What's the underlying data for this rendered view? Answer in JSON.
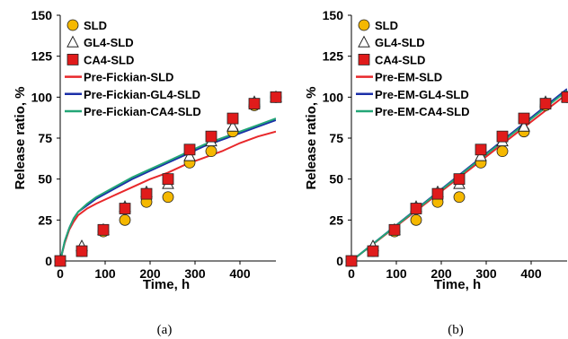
{
  "chart_data": [
    {
      "type": "scatter",
      "caption": "(a)",
      "xlabel": "Time, h",
      "ylabel": "Release ratio, %",
      "xlim": [
        0,
        480
      ],
      "ylim": [
        0,
        150
      ],
      "xticks": [
        "0",
        "100",
        "200",
        "300",
        "400"
      ],
      "yticks": [
        "0",
        "25",
        "50",
        "75",
        "100",
        "125",
        "150"
      ],
      "grid": false,
      "legend_position": "top-left",
      "series": [
        {
          "name": "SLD",
          "kind": "marker",
          "marker": "circle",
          "color": "#f5b800",
          "x": [
            0,
            48,
            96,
            144,
            192,
            240,
            288,
            336,
            384,
            432,
            480
          ],
          "y": [
            0,
            6,
            18,
            25,
            36,
            39,
            60,
            67,
            79,
            95,
            100
          ]
        },
        {
          "name": "GL4-SLD",
          "kind": "marker",
          "marker": "triangle",
          "color": "#ffffff",
          "x": [
            0,
            48,
            96,
            144,
            192,
            240,
            288,
            336,
            384,
            432,
            480
          ],
          "y": [
            0,
            9,
            19,
            33,
            42,
            47,
            64,
            73,
            82,
            97,
            100
          ]
        },
        {
          "name": "CA4-SLD",
          "kind": "marker",
          "marker": "square",
          "color": "#e01b1b",
          "x": [
            0,
            48,
            96,
            144,
            192,
            240,
            288,
            336,
            384,
            432,
            480
          ],
          "y": [
            0,
            6,
            19,
            32,
            41,
            50,
            68,
            76,
            87,
            96,
            100
          ]
        },
        {
          "name": "Pre-Fickian-SLD",
          "kind": "line",
          "color": "#e8282b",
          "x": [
            0,
            10,
            20,
            30,
            40,
            60,
            80,
            120,
            160,
            200,
            240,
            280,
            320,
            360,
            400,
            440,
            480
          ],
          "y": [
            0,
            11,
            19,
            24,
            28,
            32,
            35,
            40,
            45,
            50,
            54,
            59,
            63,
            67,
            72,
            76,
            79
          ]
        },
        {
          "name": "Pre-Fickian-GL4-SLD",
          "kind": "line",
          "color": "#1b2fa8",
          "x": [
            0,
            10,
            20,
            30,
            40,
            60,
            80,
            120,
            160,
            200,
            240,
            280,
            320,
            360,
            400,
            440,
            480
          ],
          "y": [
            0,
            12,
            20,
            26,
            30,
            34,
            38,
            44,
            50,
            55,
            60,
            65,
            70,
            74,
            78,
            82,
            86
          ]
        },
        {
          "name": "Pre-Fickian-CA4-SLD",
          "kind": "line",
          "color": "#23a677",
          "x": [
            0,
            10,
            20,
            30,
            40,
            60,
            80,
            120,
            160,
            200,
            240,
            280,
            320,
            360,
            400,
            440,
            480
          ],
          "y": [
            0,
            12,
            20,
            26,
            30,
            35,
            39,
            45,
            51,
            56,
            61,
            66,
            71,
            75,
            79,
            83,
            87
          ]
        }
      ]
    },
    {
      "type": "scatter",
      "caption": "(b)",
      "xlabel": "Time, h",
      "ylabel": "Release ratio, %",
      "xlim": [
        0,
        480
      ],
      "ylim": [
        0,
        150
      ],
      "xticks": [
        "0",
        "100",
        "200",
        "300",
        "400"
      ],
      "yticks": [
        "0",
        "25",
        "50",
        "75",
        "100",
        "125",
        "150"
      ],
      "grid": false,
      "legend_position": "top-left",
      "series": [
        {
          "name": "SLD",
          "kind": "marker",
          "marker": "circle",
          "color": "#f5b800",
          "x": [
            0,
            48,
            96,
            144,
            192,
            240,
            288,
            336,
            384,
            432,
            480
          ],
          "y": [
            0,
            6,
            18,
            25,
            36,
            39,
            60,
            67,
            79,
            95,
            100
          ]
        },
        {
          "name": "GL4-SLD",
          "kind": "marker",
          "marker": "triangle",
          "color": "#ffffff",
          "x": [
            0,
            48,
            96,
            144,
            192,
            240,
            288,
            336,
            384,
            432,
            480
          ],
          "y": [
            0,
            9,
            19,
            33,
            42,
            47,
            64,
            73,
            82,
            97,
            100
          ]
        },
        {
          "name": "CA4-SLD",
          "kind": "marker",
          "marker": "square",
          "color": "#e01b1b",
          "x": [
            0,
            48,
            96,
            144,
            192,
            240,
            288,
            336,
            384,
            432,
            480
          ],
          "y": [
            0,
            6,
            19,
            32,
            41,
            50,
            68,
            76,
            87,
            96,
            100
          ]
        },
        {
          "name": "Pre-EM-SLD",
          "kind": "line",
          "color": "#e8282b",
          "x": [
            0,
            480
          ],
          "y": [
            0,
            102
          ]
        },
        {
          "name": "Pre-EM-GL4-SLD",
          "kind": "line",
          "color": "#1b2fa8",
          "x": [
            0,
            480
          ],
          "y": [
            0,
            105
          ]
        },
        {
          "name": "Pre-EM-CA4-SLD",
          "kind": "line",
          "color": "#23a677",
          "x": [
            0,
            480
          ],
          "y": [
            0,
            104
          ]
        }
      ]
    }
  ]
}
